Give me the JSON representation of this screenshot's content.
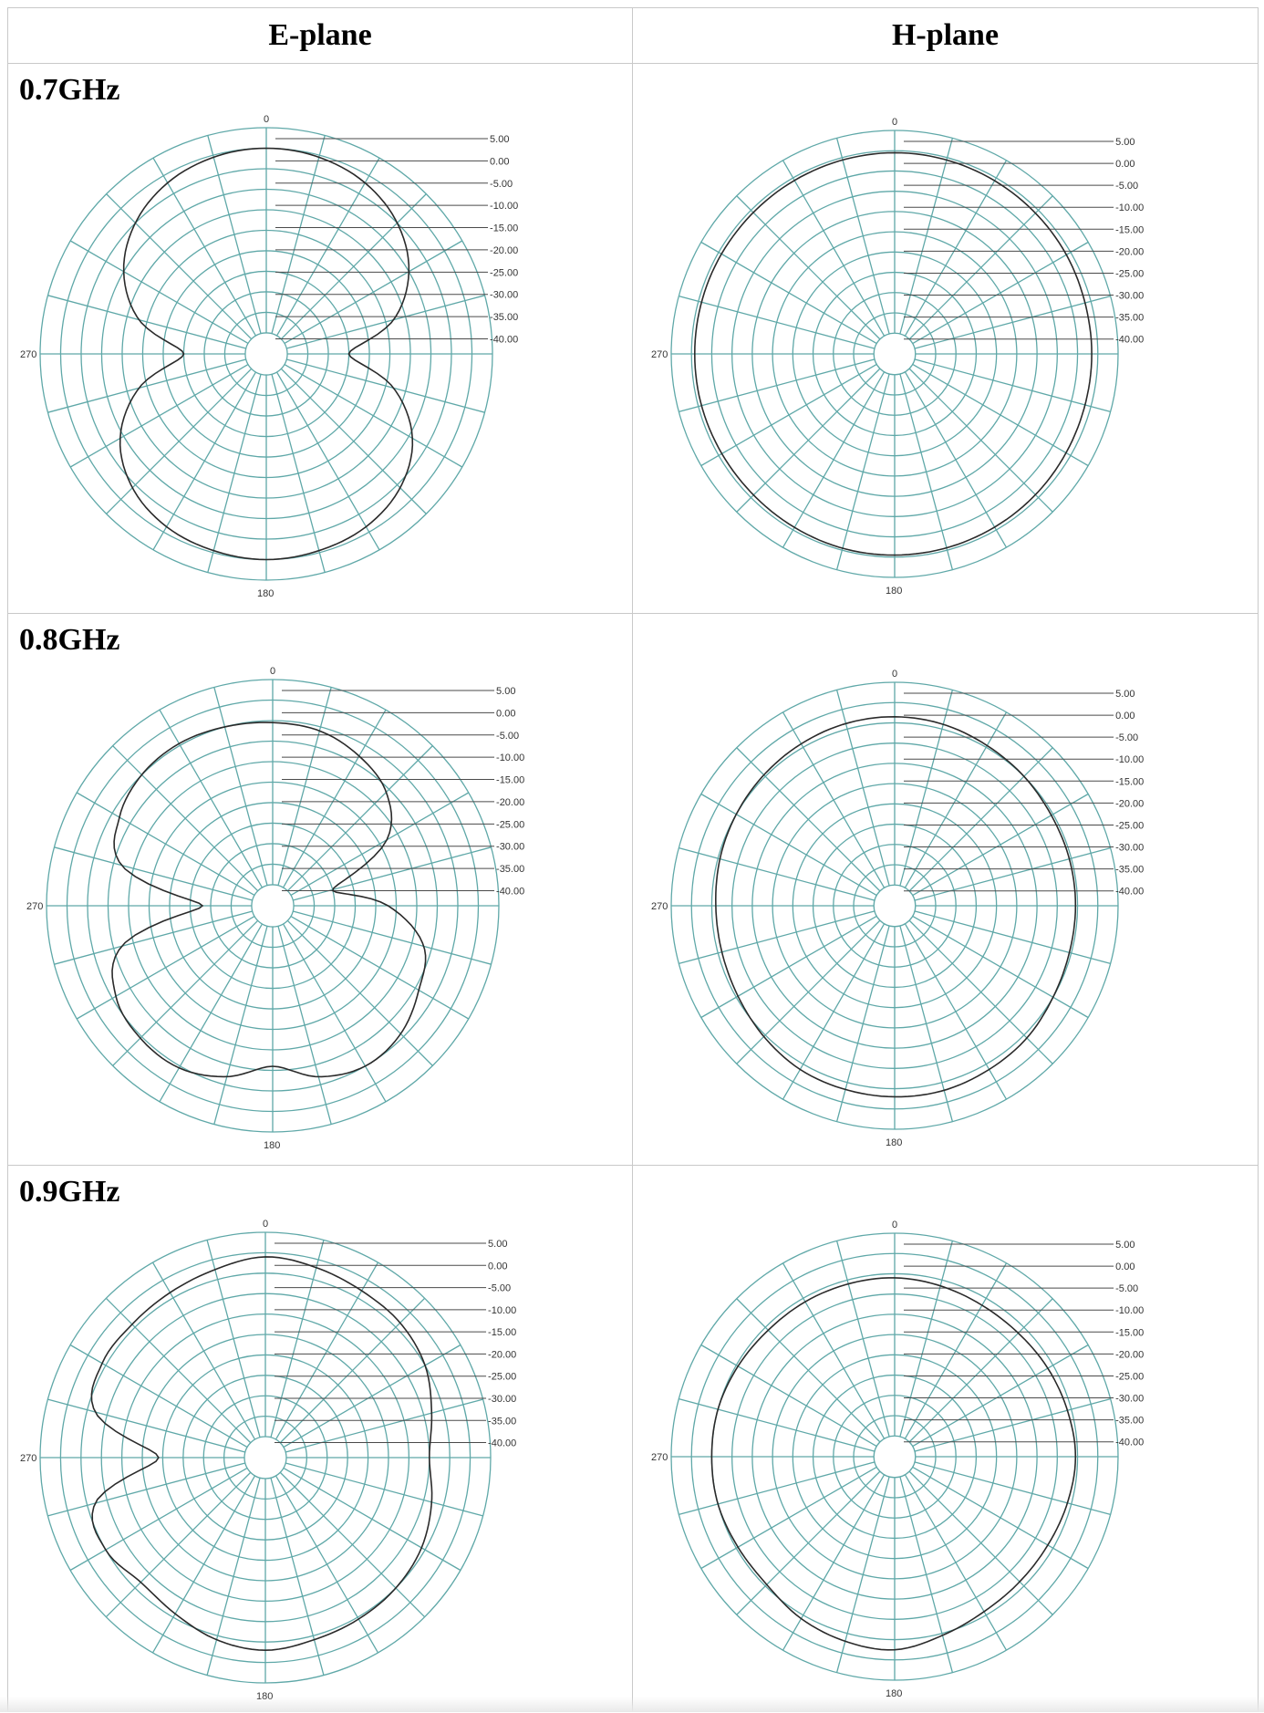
{
  "table": {
    "col_headers": [
      "E-plane",
      "H-plane"
    ],
    "row_labels": [
      "0.7GHz",
      "0.8GHz",
      "0.9GHz"
    ]
  },
  "colors": {
    "grid": "#5fa8a8",
    "trace": "#2a2a2a",
    "ref_line": "#4a4a4a",
    "label": "#333333"
  },
  "chart_data": [
    {
      "type": "polar",
      "plane": "E-plane",
      "frequency": "0.7GHz",
      "angle_labels": [
        "0",
        "270",
        "180"
      ],
      "radial_ticks": [
        "5.00",
        "0.00",
        "-5.00",
        "-10.00",
        "-15.00",
        "-20.00",
        "-25.00",
        "-30.00",
        "-35.00",
        "-40.00"
      ],
      "rlim": [
        -45,
        5
      ],
      "angles_deg": [
        0,
        15,
        30,
        45,
        60,
        75,
        90,
        105,
        120,
        135,
        150,
        165,
        180,
        195,
        210,
        225,
        240,
        255,
        270,
        285,
        300,
        315,
        330,
        345
      ],
      "gain_db": [
        0,
        -0.5,
        -2,
        -5,
        -10,
        -18,
        -30,
        -18,
        -9,
        -4,
        -1.5,
        -0.5,
        0,
        -0.5,
        -1.5,
        -4,
        -9,
        -18,
        -30,
        -18,
        -10,
        -5,
        -2,
        -0.5
      ]
    },
    {
      "type": "polar",
      "plane": "H-plane",
      "frequency": "0.7GHz",
      "angle_labels": [
        "0",
        "270",
        "180"
      ],
      "radial_ticks": [
        "5.00",
        "0.00",
        "-5.00",
        "-10.00",
        "-15.00",
        "-20.00",
        "-25.00",
        "-30.00",
        "-35.00",
        "-40.00"
      ],
      "rlim": [
        -45,
        5
      ],
      "angles_deg": [
        0,
        15,
        30,
        45,
        60,
        75,
        90,
        105,
        120,
        135,
        150,
        165,
        180,
        195,
        210,
        225,
        240,
        255,
        270,
        285,
        300,
        315,
        330,
        345
      ],
      "gain_db": [
        -0.5,
        -0.6,
        -0.8,
        -1,
        -1.2,
        -1.5,
        -1.5,
        -1.5,
        -1.3,
        -1,
        -0.8,
        -0.6,
        -0.5,
        -0.5,
        -0.7,
        -0.9,
        -0.9,
        -0.8,
        -0.8,
        -0.8,
        -0.8,
        -0.8,
        -0.7,
        -0.6
      ]
    },
    {
      "type": "polar",
      "plane": "E-plane",
      "frequency": "0.8GHz",
      "angle_labels": [
        "0",
        "270",
        "180"
      ],
      "radial_ticks": [
        "5.00",
        "0.00",
        "-5.00",
        "-10.00",
        "-15.00",
        "-20.00",
        "-25.00",
        "-30.00",
        "-35.00",
        "-40.00"
      ],
      "rlim": [
        -45,
        5
      ],
      "angles_deg": [
        0,
        15,
        30,
        45,
        60,
        75,
        90,
        105,
        120,
        135,
        150,
        165,
        180,
        195,
        210,
        225,
        240,
        255,
        270,
        285,
        300,
        315,
        330,
        345
      ],
      "gain_db": [
        -5.5,
        -6,
        -8,
        -11,
        -18,
        -35,
        -22,
        -12,
        -9,
        -6,
        -5,
        -7,
        -11,
        -7,
        -4.5,
        -4.5,
        -6,
        -12,
        -33,
        -12,
        -7,
        -5,
        -4.5,
        -5
      ]
    },
    {
      "type": "polar",
      "plane": "H-plane",
      "frequency": "0.8GHz",
      "angle_labels": [
        "0",
        "270",
        "180"
      ],
      "radial_ticks": [
        "5.00",
        "0.00",
        "-5.00",
        "-10.00",
        "-15.00",
        "-20.00",
        "-25.00",
        "-30.00",
        "-35.00",
        "-40.00"
      ],
      "rlim": [
        -45,
        5
      ],
      "angles_deg": [
        0,
        15,
        30,
        45,
        60,
        75,
        90,
        105,
        120,
        135,
        150,
        165,
        180,
        195,
        210,
        225,
        240,
        255,
        270,
        285,
        300,
        315,
        330,
        345
      ],
      "gain_db": [
        -3.5,
        -3.8,
        -4.5,
        -5,
        -5.5,
        -5.5,
        -5.5,
        -5.5,
        -5,
        -4,
        -3.5,
        -3,
        -3,
        -3.2,
        -3.5,
        -4.5,
        -5.5,
        -6,
        -6,
        -5.5,
        -5,
        -4.5,
        -4,
        -3.6
      ]
    },
    {
      "type": "polar",
      "plane": "E-plane",
      "frequency": "0.9GHz",
      "angle_labels": [
        "0",
        "270",
        "180"
      ],
      "radial_ticks": [
        "5.00",
        "0.00",
        "-5.00",
        "-10.00",
        "-15.00",
        "-20.00",
        "-25.00",
        "-30.00",
        "-35.00",
        "-40.00"
      ],
      "rlim": [
        -45,
        5
      ],
      "angles_deg": [
        0,
        15,
        30,
        45,
        60,
        75,
        90,
        105,
        120,
        135,
        150,
        165,
        180,
        195,
        210,
        225,
        240,
        255,
        270,
        285,
        300,
        315,
        330,
        345
      ],
      "gain_db": [
        -1,
        -2,
        -3,
        -3.5,
        -5,
        -8,
        -10,
        -8,
        -6,
        -5,
        -4.5,
        -4,
        -3,
        -4,
        -6,
        -7,
        -5,
        -7,
        -24,
        -7,
        -4,
        -4,
        -3.5,
        -2.5
      ]
    },
    {
      "type": "polar",
      "plane": "H-plane",
      "frequency": "0.9GHz",
      "angle_labels": [
        "0",
        "270",
        "180"
      ],
      "radial_ticks": [
        "5.00",
        "0.00",
        "-5.00",
        "-10.00",
        "-15.00",
        "-20.00",
        "-25.00",
        "-30.00",
        "-35.00",
        "-40.00"
      ],
      "rlim": [
        -45,
        5
      ],
      "angles_deg": [
        0,
        15,
        30,
        45,
        60,
        75,
        90,
        105,
        120,
        135,
        150,
        165,
        180,
        195,
        210,
        225,
        240,
        255,
        270,
        285,
        300,
        315,
        330,
        345
      ],
      "gain_db": [
        -6,
        -6.5,
        -7,
        -7,
        -6.5,
        -6,
        -5.5,
        -6,
        -6.5,
        -6.5,
        -6,
        -4.5,
        -2.5,
        -3,
        -4,
        -5.5,
        -5.5,
        -5,
        -5,
        -5,
        -5.5,
        -6,
        -6,
        -6
      ]
    }
  ]
}
